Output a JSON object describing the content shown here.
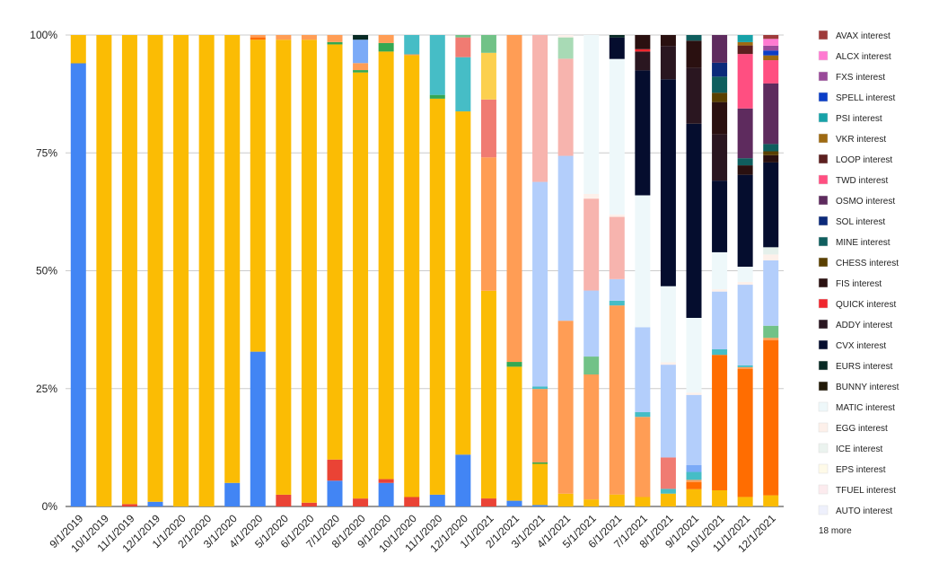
{
  "chart_data": {
    "type": "bar",
    "stacked": "percent",
    "grid": true,
    "legend_position": "right",
    "ylim": [
      0,
      100
    ],
    "y_ticks": [
      "0%",
      "25%",
      "50%",
      "75%",
      "100%"
    ],
    "categories": [
      "9/1/2019",
      "10/1/2019",
      "11/1/2019",
      "12/1/2019",
      "1/1/2020",
      "2/1/2020",
      "3/1/2020",
      "4/1/2020",
      "5/1/2020",
      "6/1/2020",
      "7/1/2020",
      "8/1/2020",
      "9/1/2020",
      "10/1/2020",
      "11/1/2020",
      "12/1/2020",
      "1/1/2021",
      "2/1/2021",
      "3/1/2021",
      "4/1/2021",
      "5/1/2021",
      "6/1/2021",
      "7/1/2021",
      "8/1/2021",
      "9/1/2021",
      "10/1/2021",
      "11/1/2021",
      "12/1/2021"
    ],
    "legend": [
      {
        "name": "AVAX interest",
        "color": "#9e3a3a"
      },
      {
        "name": "ALCX interest",
        "color": "#ff7ad1"
      },
      {
        "name": "FXS interest",
        "color": "#9a4a9a"
      },
      {
        "name": "SPELL interest",
        "color": "#0b3ec7"
      },
      {
        "name": "PSI interest",
        "color": "#17a2a8"
      },
      {
        "name": "VKR interest",
        "color": "#9e6a12"
      },
      {
        "name": "LOOP interest",
        "color": "#5c1f1f"
      },
      {
        "name": "TWD interest",
        "color": "#ff4f81"
      },
      {
        "name": "OSMO interest",
        "color": "#5e2b5e"
      },
      {
        "name": "SOL interest",
        "color": "#0b2a7a"
      },
      {
        "name": "MINE interest",
        "color": "#0f5e5e"
      },
      {
        "name": "CHESS interest",
        "color": "#5a4000"
      },
      {
        "name": "FIS interest",
        "color": "#2a1010"
      },
      {
        "name": "QUICK interest",
        "color": "#f0262e"
      },
      {
        "name": "ADDY interest",
        "color": "#2a1620"
      },
      {
        "name": "CVX interest",
        "color": "#050d2e"
      },
      {
        "name": "EURS interest",
        "color": "#082a24"
      },
      {
        "name": "BUNNY interest",
        "color": "#221a08"
      },
      {
        "name": "MATIC interest",
        "color": "#eef8fa"
      },
      {
        "name": "EGG interest",
        "color": "#fdf0ea"
      },
      {
        "name": "ICE interest",
        "color": "#ebf3ef"
      },
      {
        "name": "EPS interest",
        "color": "#fefae8"
      },
      {
        "name": "TFUEL interest",
        "color": "#fcebee"
      },
      {
        "name": "AUTO interest",
        "color": "#eef0fc"
      }
    ],
    "legend_more": "18 more",
    "series": [
      {
        "color": "#4285f4",
        "values": [
          94,
          0,
          0,
          1,
          0,
          0,
          5,
          33,
          0,
          0,
          5.5,
          0,
          5,
          0,
          2.5,
          11,
          0,
          1.2,
          0.3,
          0,
          0,
          0,
          0,
          0,
          0,
          0,
          0,
          0
        ]
      },
      {
        "color": "#ea4335",
        "values": [
          0,
          0,
          0.5,
          0,
          0,
          0,
          0,
          0,
          2.5,
          0.8,
          4.5,
          1.7,
          0.8,
          2,
          0,
          0,
          1.8,
          0,
          0,
          0,
          0,
          0,
          0,
          0,
          0,
          0,
          0,
          0
        ]
      },
      {
        "color": "#fbbc04",
        "values": [
          6,
          100,
          99.5,
          99,
          100,
          100,
          95,
          66.5,
          96.7,
          98.2,
          88.5,
          91.1,
          90.7,
          93.7,
          84,
          72.8,
          46.7,
          28,
          8.7,
          2.7,
          1.5,
          2.5,
          2,
          2.7,
          3.7,
          3.5,
          2,
          2.3
        ]
      },
      {
        "color": "#ff6d01",
        "values": [
          0,
          0,
          0,
          0,
          0,
          0,
          0,
          0.5,
          0,
          0,
          0,
          0,
          0,
          0,
          0,
          0,
          0,
          0,
          0,
          0,
          0,
          0,
          0,
          0,
          1.5,
          29.3,
          27,
          32
        ]
      },
      {
        "color": "#34a853",
        "values": [
          0,
          0,
          0,
          0,
          0,
          0,
          0,
          0,
          0,
          0,
          0.5,
          0.5,
          1.8,
          0,
          0.8,
          0,
          0,
          1,
          0.3,
          0,
          0,
          0,
          0,
          0,
          0,
          0,
          0,
          0
        ]
      },
      {
        "color": "#ff9d55",
        "values": [
          0,
          0,
          0,
          0,
          0,
          0,
          0,
          0.5,
          1,
          1,
          1.5,
          1.5,
          1.7,
          0.2,
          0,
          0,
          30,
          68.3,
          15.5,
          36.5,
          26.5,
          39.5,
          17,
          0,
          0.5,
          0,
          0.4,
          0.5
        ]
      },
      {
        "color": "#46bdc6",
        "values": [
          0,
          0,
          0,
          0,
          0,
          0,
          0,
          0,
          0,
          0,
          0,
          0,
          0,
          4.1,
          12.7,
          11.5,
          0,
          0,
          0.5,
          0,
          0,
          1,
          1,
          1,
          1.7,
          1.2,
          0.4,
          0
        ]
      },
      {
        "color": "#7baaf7",
        "values": [
          0,
          0,
          0,
          0,
          0,
          0,
          0,
          0,
          0,
          0,
          0,
          5,
          0,
          0,
          0,
          0,
          0,
          0,
          0,
          0,
          0,
          0,
          0,
          0,
          1.5,
          0,
          0,
          0
        ]
      },
      {
        "color": "#f07b72",
        "values": [
          0,
          0,
          0,
          0,
          0,
          0,
          0,
          0,
          0,
          0,
          0,
          0,
          0,
          0,
          0,
          4.2,
          13,
          0,
          0,
          0,
          0,
          0,
          0,
          6.6,
          0,
          0,
          0,
          0
        ]
      },
      {
        "color": "#fcd04f",
        "values": [
          0,
          0,
          0,
          0,
          0,
          0,
          0,
          0,
          0,
          0,
          0,
          0,
          0,
          0,
          0,
          0,
          10.5,
          0,
          0,
          0,
          0,
          0,
          0,
          0,
          0,
          0,
          0,
          0
        ]
      },
      {
        "color": "#71c287",
        "values": [
          0,
          0,
          0,
          0,
          0,
          0,
          0,
          0,
          0,
          0,
          0,
          0,
          0,
          0,
          0,
          0.5,
          4,
          0,
          0,
          0,
          3.8,
          0,
          0,
          0,
          0,
          0,
          0,
          2.5
        ]
      },
      {
        "color": "#b3cefb",
        "values": [
          0,
          0,
          0,
          0,
          0,
          0,
          0,
          0,
          0,
          0,
          0,
          0,
          0,
          0,
          0,
          0,
          0,
          0,
          43.2,
          34.8,
          14,
          4.5,
          18,
          19.5,
          15,
          12.5,
          17,
          13.5
        ]
      },
      {
        "color": "#f7b4ae",
        "values": [
          0,
          0,
          0,
          0,
          0,
          0,
          0,
          0,
          0,
          0,
          0,
          0,
          0,
          0,
          0,
          0,
          0,
          0,
          31,
          20.5,
          19.5,
          13,
          0,
          0,
          0,
          0,
          0,
          0
        ]
      },
      {
        "color": "#a8dab5",
        "values": [
          0,
          0,
          0,
          0,
          0,
          0,
          0,
          0,
          0,
          0,
          0,
          0,
          0,
          0,
          0,
          0,
          0,
          0,
          0,
          4.5,
          0,
          0,
          0,
          0,
          0,
          0,
          0,
          0
        ]
      },
      {
        "color": "#fdf0ea",
        "values": [
          0,
          0,
          0,
          0,
          0,
          0,
          0,
          0,
          0,
          0,
          0,
          0,
          0,
          0,
          0,
          0,
          0,
          0,
          0,
          0.5,
          1,
          0.5,
          0,
          0.5,
          0.5,
          0.5,
          0.6,
          1.2
        ]
      },
      {
        "color": "#eef8fa",
        "values": [
          0,
          0,
          0,
          0,
          0,
          0,
          0,
          0,
          0,
          0,
          0,
          0,
          0,
          0,
          0,
          0,
          0,
          0,
          0,
          0,
          33.7,
          32.5,
          28,
          16,
          16,
          8,
          3.2,
          0
        ]
      },
      {
        "color": "#e5f0eb",
        "values": [
          0,
          0,
          0,
          0,
          0,
          0,
          0,
          0,
          0,
          0,
          0,
          0,
          0,
          0,
          0,
          0,
          0,
          0,
          0,
          0,
          0,
          0,
          0,
          0,
          0,
          0,
          0,
          1.5
        ]
      },
      {
        "color": "#050d2e",
        "values": [
          0,
          0,
          0,
          0,
          0,
          0,
          0,
          0,
          0,
          0,
          0,
          0,
          0,
          0,
          0,
          0,
          0,
          0,
          0,
          0,
          0,
          4.5,
          26.5,
          43.5,
          41.6,
          15.5,
          19.4,
          17.5
        ]
      },
      {
        "color": "#082a24",
        "values": [
          0,
          0,
          0,
          0,
          0,
          0,
          0,
          0,
          0,
          0,
          0,
          1,
          0,
          0,
          0,
          0,
          0,
          0,
          0,
          0,
          0,
          0.5,
          0,
          0,
          0,
          0,
          0,
          0
        ]
      },
      {
        "color": "#2a1620",
        "values": [
          0,
          0,
          0,
          0,
          0,
          0,
          0,
          0,
          0,
          0,
          0,
          0,
          0,
          0,
          0,
          0,
          0,
          0,
          0,
          0,
          0,
          0,
          4,
          7,
          12,
          10,
          0,
          0
        ]
      },
      {
        "color": "#f0262e",
        "values": [
          0,
          0,
          0,
          0,
          0,
          0,
          0,
          0,
          0,
          0,
          0,
          0,
          0,
          0,
          0,
          0,
          0,
          0,
          0,
          0,
          0,
          0,
          0.5,
          0,
          0,
          0,
          0,
          0
        ]
      },
      {
        "color": "#2a1010",
        "values": [
          0,
          0,
          0,
          0,
          0,
          0,
          0,
          0,
          0,
          0,
          0,
          0,
          0,
          0,
          0,
          0,
          0,
          0,
          0,
          0,
          0,
          0,
          3,
          2.3,
          5.8,
          7,
          2,
          1.5
        ]
      },
      {
        "color": "#5a4000",
        "values": [
          0,
          0,
          0,
          0,
          0,
          0,
          0,
          0,
          0,
          0,
          0,
          0,
          0,
          0,
          0,
          0,
          0,
          0,
          0,
          0,
          0,
          0,
          0,
          0,
          0,
          2,
          0,
          0.8
        ]
      },
      {
        "color": "#0f5e5e",
        "values": [
          0,
          0,
          0,
          0,
          0,
          0,
          0,
          0,
          0,
          0,
          0,
          0,
          0,
          0,
          0,
          0,
          0,
          0,
          0,
          0,
          0,
          0,
          0,
          0,
          1.2,
          3.5,
          1.5,
          1.5
        ]
      },
      {
        "color": "#0b2a7a",
        "values": [
          0,
          0,
          0,
          0,
          0,
          0,
          0,
          0,
          0,
          0,
          0,
          0,
          0,
          0,
          0,
          0,
          0,
          0,
          0,
          0,
          0,
          0,
          0,
          0,
          0,
          3,
          0,
          0
        ]
      },
      {
        "color": "#5e2b5e",
        "values": [
          0,
          0,
          0,
          0,
          0,
          0,
          0,
          0,
          0,
          0,
          0,
          0,
          0,
          0,
          0,
          0,
          0,
          0,
          0,
          0,
          0,
          0,
          0,
          0,
          0,
          6,
          10.5,
          12.5
        ]
      },
      {
        "color": "#ff4f81",
        "values": [
          0,
          0,
          0,
          0,
          0,
          0,
          0,
          0,
          0,
          0,
          0,
          0,
          0,
          0,
          0,
          0,
          0,
          0,
          0,
          0,
          0,
          0,
          0,
          0,
          0,
          0,
          11.5,
          4.8
        ]
      },
      {
        "color": "#5c1f1f",
        "values": [
          0,
          0,
          0,
          0,
          0,
          0,
          0,
          0,
          0,
          0,
          0,
          0,
          0,
          0,
          0,
          0,
          0,
          0,
          0,
          0,
          0,
          0,
          0,
          0,
          0,
          0,
          1.8,
          0
        ]
      },
      {
        "color": "#9e6a12",
        "values": [
          0,
          0,
          0,
          0,
          0,
          0,
          0,
          0,
          0,
          0,
          0,
          0,
          0,
          0,
          0,
          0,
          0,
          0,
          0,
          0,
          0,
          0,
          0,
          0,
          0,
          0,
          0.7,
          1
        ]
      },
      {
        "color": "#17a2a8",
        "values": [
          0,
          0,
          0,
          0,
          0,
          0,
          0,
          0,
          0,
          0,
          0,
          0,
          0,
          0,
          0,
          0,
          0,
          0,
          0,
          0,
          0,
          0,
          0,
          0,
          0,
          0,
          1.5,
          0
        ]
      },
      {
        "color": "#0b3ec7",
        "values": [
          0,
          0,
          0,
          0,
          0,
          0,
          0,
          0,
          0,
          0,
          0,
          0,
          0,
          0,
          0,
          0,
          0,
          0,
          0,
          0,
          0,
          0,
          0,
          0,
          0,
          0,
          0,
          1
        ]
      },
      {
        "color": "#9a4a9a",
        "values": [
          0,
          0,
          0,
          0,
          0,
          0,
          0,
          0,
          0,
          0,
          0,
          0,
          0,
          0,
          0,
          0,
          0,
          0,
          0,
          0,
          0,
          0,
          0,
          0,
          0,
          0,
          0,
          1
        ]
      },
      {
        "color": "#ff7ad1",
        "values": [
          0,
          0,
          0,
          0,
          0,
          0,
          0,
          0,
          0,
          0,
          0,
          0,
          0,
          0,
          0,
          0,
          0,
          0,
          0,
          0,
          0,
          0,
          0,
          0,
          0,
          0,
          0,
          1.4
        ]
      },
      {
        "color": "#9e3a3a",
        "values": [
          0,
          0,
          0,
          0,
          0,
          0,
          0,
          0,
          0,
          0,
          0,
          0,
          0,
          0,
          0,
          0,
          0,
          0,
          0,
          0,
          0,
          0,
          0,
          0,
          0,
          0,
          0,
          0.8
        ]
      }
    ]
  }
}
